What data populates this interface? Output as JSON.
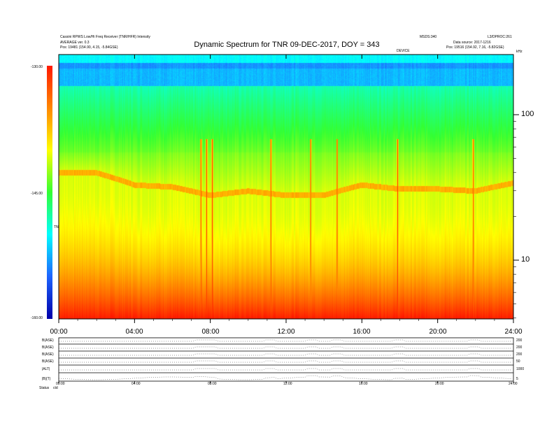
{
  "header": {
    "left_line1": "Cassini RPWS Low/Hi Freq Receiver (TNR/HFR) Intensity",
    "left_line2": "AVERAGE ver. 0.3",
    "left_line3": "Pos:   19481 (154.90, 4.15, -5.84GSE)",
    "right_line1": "MSDS:340",
    "right_line2": "Data source: 2017-1216",
    "right_line3": "Pos:   19516 (154.92, 7.16, -5.82GSE)",
    "right_id": "L3/DPROC:261",
    "mid_tag": "DEVICE"
  },
  "title": "Dynamic Spectrum for TNR 09-DEC-2017, DOY = 343",
  "colorbar": {
    "top_label": "-130.00",
    "mid_label": "-145.00",
    "bottom_label": "-160.00",
    "unit": "TNR"
  },
  "right_axis": {
    "unit": "kHz",
    "label_100": "100",
    "label_10": "10"
  },
  "x_ticks": [
    "00:00",
    "04:00",
    "08:00",
    "12:00",
    "16:00",
    "20:00",
    "24:00"
  ],
  "panel_labels": [
    "B(ASE)",
    "B(ASE)",
    "B(ASE)",
    "B(ASE)",
    "|ALT|",
    "|B|(T)"
  ],
  "panel_right_labels": [
    "200",
    "200",
    "200",
    "50",
    "1000",
    "5"
  ],
  "panel_ticks": [
    "00:00",
    "04:00",
    "08:00",
    "12:00",
    "16:00",
    "20:00",
    "24:00"
  ],
  "footer": {
    "label": "Status",
    "value": "ctd"
  },
  "colors": {
    "red": "#ff1a00",
    "orange": "#ff8800",
    "yellow": "#ffff00",
    "green": "#33ff33",
    "cyan": "#00ffff",
    "blue": "#1e64ff",
    "navy": "#0000aa"
  },
  "chart_data": {
    "type": "heatmap",
    "title": "Dynamic Spectrum for TNR 09-DEC-2017, DOY = 343",
    "xlabel": "",
    "ylabel": "kHz",
    "x_ticks": [
      "00:00",
      "04:00",
      "08:00",
      "12:00",
      "16:00",
      "20:00",
      "24:00"
    ],
    "x_range_hours": [
      0,
      24
    ],
    "y_scale": "log",
    "y_ticks": [
      10,
      100
    ],
    "color_scale": {
      "min": -160.0,
      "mid": -145.0,
      "max": -130.0,
      "colors": [
        "#0000aa",
        "#1e64ff",
        "#00ffff",
        "#33ff33",
        "#ffff00",
        "#ff8800",
        "#ff1a00"
      ]
    },
    "features": {
      "bursts_hours": [
        7.5,
        7.8,
        8.1,
        11.2,
        13.3,
        14.7,
        17.9,
        21.9
      ],
      "plasma_line_hours": [
        0,
        2,
        4,
        6,
        8,
        10,
        12,
        14,
        16,
        18,
        20,
        22,
        24
      ],
      "plasma_line_khz": [
        40,
        40,
        33,
        32,
        28,
        30,
        28,
        28,
        33,
        31,
        31,
        30,
        34
      ]
    }
  }
}
